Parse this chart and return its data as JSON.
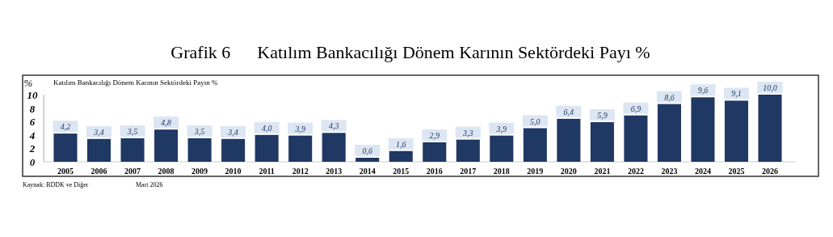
{
  "chart_data": {
    "type": "bar",
    "title": "Grafik 6      Katılım Bankacılığı Dönem Karının Sektördeki Payı %",
    "subtitle": "Katılım Bankacılığı Dönem Karının Sektördeki Payın  %",
    "ylabel": "%",
    "categories": [
      "2005",
      "2006",
      "2007",
      "2008",
      "2009",
      "2010",
      "2011",
      "2012",
      "2013",
      "2014",
      "2015",
      "2016",
      "2017",
      "2018",
      "2019",
      "2020",
      "2021",
      "2022",
      "2023",
      "2024",
      "2025",
      "2026"
    ],
    "values": [
      4.2,
      3.4,
      3.5,
      4.8,
      3.5,
      3.4,
      4.0,
      3.9,
      4.3,
      0.6,
      1.6,
      2.9,
      3.3,
      3.9,
      5.0,
      6.4,
      5.9,
      6.9,
      8.6,
      9.6,
      9.1,
      10.0
    ],
    "value_labels": [
      "4,2",
      "3,4",
      "3,5",
      "4,8",
      "3,5",
      "3,4",
      "4,0",
      "3,9",
      "4,3",
      "0,6",
      "1,6",
      "2,9",
      "3,3",
      "3,9",
      "5,0",
      "6,4",
      "5,9",
      "6,9",
      "8,6",
      "9,6",
      "9,1",
      "10,0"
    ],
    "color": "#1f3864",
    "ylim": [
      0,
      10
    ],
    "yticks": [
      0,
      2,
      4,
      6,
      8,
      10
    ],
    "grid": false,
    "annotations": [
      "Kaynak: BDDK ve Diğer",
      "Mart 2026"
    ]
  }
}
